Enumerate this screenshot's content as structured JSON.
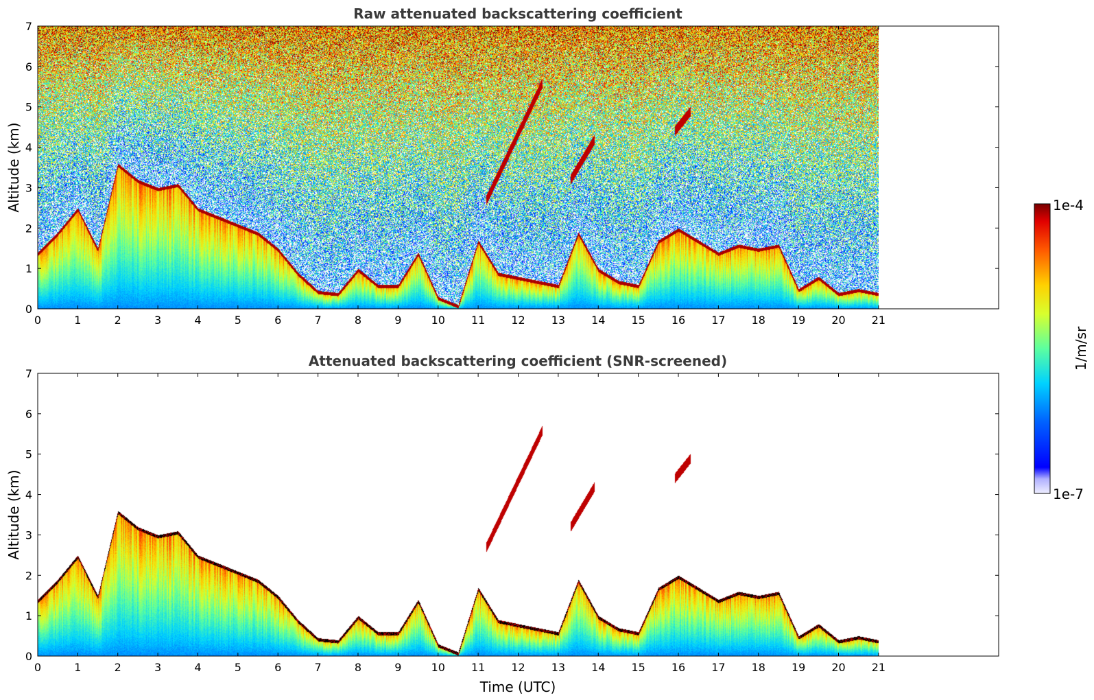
{
  "chart_data": [
    {
      "type": "heatmap",
      "title": "Raw attenuated backscattering coefficient",
      "xlabel": "",
      "ylabel": "Altitude (km)",
      "xlim": [
        0,
        24
      ],
      "ylim": [
        0,
        7
      ],
      "xticks": [
        0,
        1,
        2,
        3,
        4,
        5,
        6,
        7,
        8,
        9,
        10,
        11,
        12,
        13,
        14,
        15,
        16,
        17,
        18,
        19,
        20,
        21
      ],
      "yticks": [
        0,
        1,
        2,
        3,
        4,
        5,
        6,
        7
      ],
      "data_time_range": [
        0,
        21
      ],
      "screened": false,
      "colormap": "jet",
      "colorbar_log_range": [
        1e-07,
        0.0001
      ],
      "features": {
        "boundary_layer": [
          [
            0,
            1.4
          ],
          [
            0.5,
            1.9
          ],
          [
            1,
            2.5
          ],
          [
            1.5,
            1.5
          ],
          [
            2,
            3.6
          ],
          [
            2.5,
            3.2
          ],
          [
            3,
            3.0
          ],
          [
            3.5,
            3.1
          ],
          [
            4,
            2.5
          ],
          [
            4.5,
            2.3
          ],
          [
            5,
            2.1
          ],
          [
            5.5,
            1.9
          ],
          [
            6,
            1.5
          ],
          [
            6.5,
            0.9
          ],
          [
            7,
            0.45
          ],
          [
            7.5,
            0.4
          ],
          [
            8,
            1.0
          ],
          [
            8.5,
            0.6
          ],
          [
            9,
            0.6
          ],
          [
            9.5,
            1.4
          ],
          [
            10,
            0.3
          ],
          [
            10.5,
            0.1
          ],
          [
            11,
            1.7
          ],
          [
            11.5,
            0.9
          ],
          [
            12,
            0.8
          ],
          [
            13,
            0.6
          ],
          [
            13.5,
            1.9
          ],
          [
            14,
            1.0
          ],
          [
            14.5,
            0.7
          ],
          [
            15,
            0.6
          ],
          [
            15.5,
            1.7
          ],
          [
            16,
            2.0
          ],
          [
            16.5,
            1.7
          ],
          [
            17,
            1.4
          ],
          [
            17.5,
            1.6
          ],
          [
            18,
            1.5
          ],
          [
            18.5,
            1.6
          ],
          [
            19,
            0.5
          ],
          [
            19.5,
            0.8
          ],
          [
            20,
            0.4
          ],
          [
            20.5,
            0.5
          ],
          [
            21,
            0.4
          ]
        ],
        "elevated_layers": [
          {
            "time": [
              11.2,
              12.6
            ],
            "altitude": [
              2.7,
              5.6
            ]
          },
          {
            "time": [
              15.9,
              16.3
            ],
            "altitude": [
              4.4,
              4.9
            ]
          },
          {
            "time": [
              13.3,
              13.9
            ],
            "altitude": [
              3.2,
              4.2
            ]
          }
        ]
      }
    },
    {
      "type": "heatmap",
      "title": "Attenuated backscattering coefficient (SNR-screened)",
      "xlabel": "Time (UTC)",
      "ylabel": "Altitude (km)",
      "xlim": [
        0,
        24
      ],
      "ylim": [
        0,
        7
      ],
      "xticks": [
        0,
        1,
        2,
        3,
        4,
        5,
        6,
        7,
        8,
        9,
        10,
        11,
        12,
        13,
        14,
        15,
        16,
        17,
        18,
        19,
        20,
        21
      ],
      "yticks": [
        0,
        1,
        2,
        3,
        4,
        5,
        6,
        7
      ],
      "data_time_range": [
        0,
        21
      ],
      "screened": true,
      "colormap": "jet",
      "colorbar_log_range": [
        1e-07,
        0.0001
      ]
    }
  ],
  "colorbar": {
    "max_label": "1e-4",
    "min_label": "1e-7",
    "unit_label": "1/m/sr",
    "stops": [
      "#e8e8f8",
      "#0000ff",
      "#00c8ff",
      "#7cff7c",
      "#ffe000",
      "#ff6000",
      "#d00000",
      "#700000"
    ]
  },
  "colors": {
    "layer_strong": "#7a0a00",
    "screened_black": "#000000",
    "axis": "#000000",
    "title": "#3a3a3a"
  }
}
